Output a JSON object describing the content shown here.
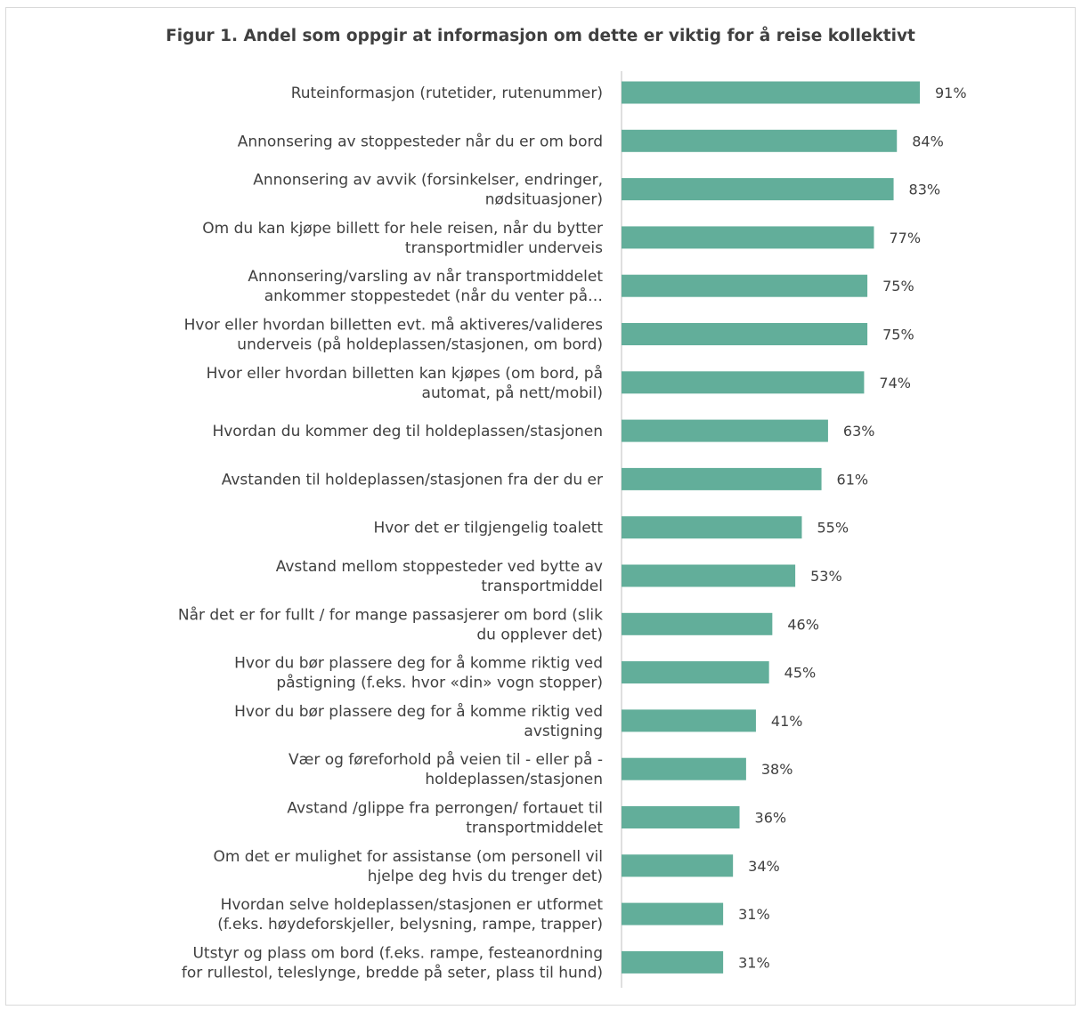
{
  "chart_data": {
    "type": "bar",
    "orientation": "horizontal",
    "title": "Figur 1. Andel som oppgir at informasjon om dette er viktig for å reise kollektivt",
    "categories": [
      "Ruteinformasjon (rutetider, rutenummer)",
      "Annonsering av stoppesteder når du er om bord",
      "Annonsering av avvik (forsinkelser, endringer, nødsituasjoner)",
      "Om du kan kjøpe billett for hele reisen, når du bytter transportmidler underveis",
      "Annonsering/varsling av når transportmiddelet ankommer stoppestedet (når du venter på…",
      "Hvor eller hvordan billetten evt. må aktiveres/valideres underveis (på holdeplassen/stasjonen, om bord)",
      "Hvor eller hvordan billetten kan kjøpes (om bord, på automat, på nett/mobil)",
      "Hvordan du kommer deg til holdeplassen/stasjonen",
      "Avstanden til holdeplassen/stasjonen fra der du er",
      "Hvor det er tilgjengelig toalett",
      "Avstand mellom stoppesteder ved bytte av transportmiddel",
      "Når det er for fullt / for mange passasjerer om bord (slik du opplever det)",
      "Hvor du bør plassere deg for å komme riktig ved påstigning (f.eks. hvor «din» vogn stopper)",
      "Hvor du bør plassere deg for å komme riktig ved avstigning",
      "Vær og føreforhold på veien til - eller på - holdeplassen/stasjonen",
      "Avstand /glippe fra perrongen/ fortauet til transportmiddelet",
      "Om det er mulighet for assistanse (om personell vil hjelpe deg hvis du trenger det)",
      "Hvordan selve holdeplassen/stasjonen er utformet (f.eks. høydeforskjeller, belysning, rampe, trapper)",
      "Utstyr og plass om bord (f.eks. rampe, festeanordning for rullestol, teleslynge, bredde på seter, plass til hund)"
    ],
    "label_lines": [
      [
        "Ruteinformasjon (rutetider, rutenummer)"
      ],
      [
        "Annonsering av stoppesteder når du er om bord"
      ],
      [
        "Annonsering av avvik (forsinkelser, endringer,",
        "nødsituasjoner)"
      ],
      [
        "Om du kan kjøpe billett for hele reisen, når du bytter",
        "transportmidler underveis"
      ],
      [
        "Annonsering/varsling av når transportmiddelet",
        "ankommer stoppestedet (når du venter på…"
      ],
      [
        "Hvor eller hvordan billetten evt. må aktiveres/valideres",
        "underveis (på holdeplassen/stasjonen, om bord)"
      ],
      [
        "Hvor eller hvordan billetten kan kjøpes (om bord, på",
        "automat, på nett/mobil)"
      ],
      [
        "Hvordan du kommer deg til holdeplassen/stasjonen"
      ],
      [
        "Avstanden til holdeplassen/stasjonen fra der du er"
      ],
      [
        "Hvor det er tilgjengelig toalett"
      ],
      [
        "Avstand mellom stoppesteder ved bytte av",
        "transportmiddel"
      ],
      [
        "Når det er for fullt / for mange passasjerer om bord (slik",
        "du opplever det)"
      ],
      [
        "Hvor du bør plassere deg for å komme riktig ved",
        "påstigning (f.eks. hvor «din» vogn stopper)"
      ],
      [
        "Hvor du bør plassere deg for å komme riktig ved",
        "avstigning"
      ],
      [
        "Vær og føreforhold på veien til - eller på -",
        "holdeplassen/stasjonen"
      ],
      [
        "Avstand /glippe fra perrongen/ fortauet til",
        "transportmiddelet"
      ],
      [
        "Om det er mulighet for assistanse (om personell vil",
        "hjelpe deg hvis du trenger det)"
      ],
      [
        "Hvordan selve holdeplassen/stasjonen er utformet",
        "(f.eks. høydeforskjeller, belysning, rampe, trapper)"
      ],
      [
        "Utstyr og plass om bord (f.eks. rampe, festeanordning",
        "for rullestol, teleslynge, bredde på seter, plass til hund)"
      ]
    ],
    "values": [
      91,
      84,
      83,
      77,
      75,
      75,
      74,
      63,
      61,
      55,
      53,
      46,
      45,
      41,
      38,
      36,
      34,
      31,
      31
    ],
    "value_labels": [
      "91%",
      "84%",
      "83%",
      "77%",
      "75%",
      "75%",
      "74%",
      "63%",
      "61%",
      "55%",
      "53%",
      "46%",
      "45%",
      "41%",
      "38%",
      "36%",
      "34%",
      "31%",
      "31%"
    ],
    "unit": "%",
    "xlim": [
      0,
      100
    ],
    "grid": false,
    "legend": "none",
    "colors": {
      "bar": "#62ae9a",
      "text": "#404040",
      "axis": "#bfbfbf"
    }
  }
}
